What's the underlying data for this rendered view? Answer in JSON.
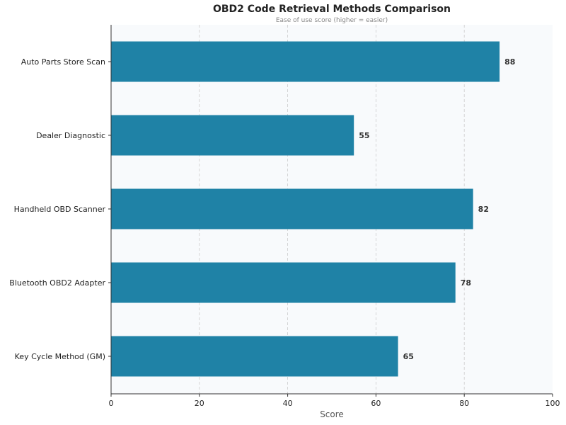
{
  "chart_data": {
    "type": "bar",
    "orientation": "horizontal",
    "title": "OBD2 Code Retrieval Methods Comparison",
    "subtitle": "Ease of use score (higher = easier)",
    "xlabel": "Score",
    "ylabel": "",
    "xlim": [
      0,
      100
    ],
    "xticks": [
      "0",
      "20",
      "40",
      "60",
      "80",
      "100"
    ],
    "grid": "vertical dashed",
    "categories": [
      "Auto Parts Store Scan",
      "Dealer Diagnostic",
      "Handheld OBD Scanner",
      "Bluetooth OBD2 Adapter",
      "Key Cycle Method (GM)"
    ],
    "values": [
      88,
      55,
      82,
      78,
      65
    ],
    "colors": {
      "bar": "#1f82a6",
      "plot_bg": "#f8fafc",
      "grid": "#cccccc"
    }
  }
}
